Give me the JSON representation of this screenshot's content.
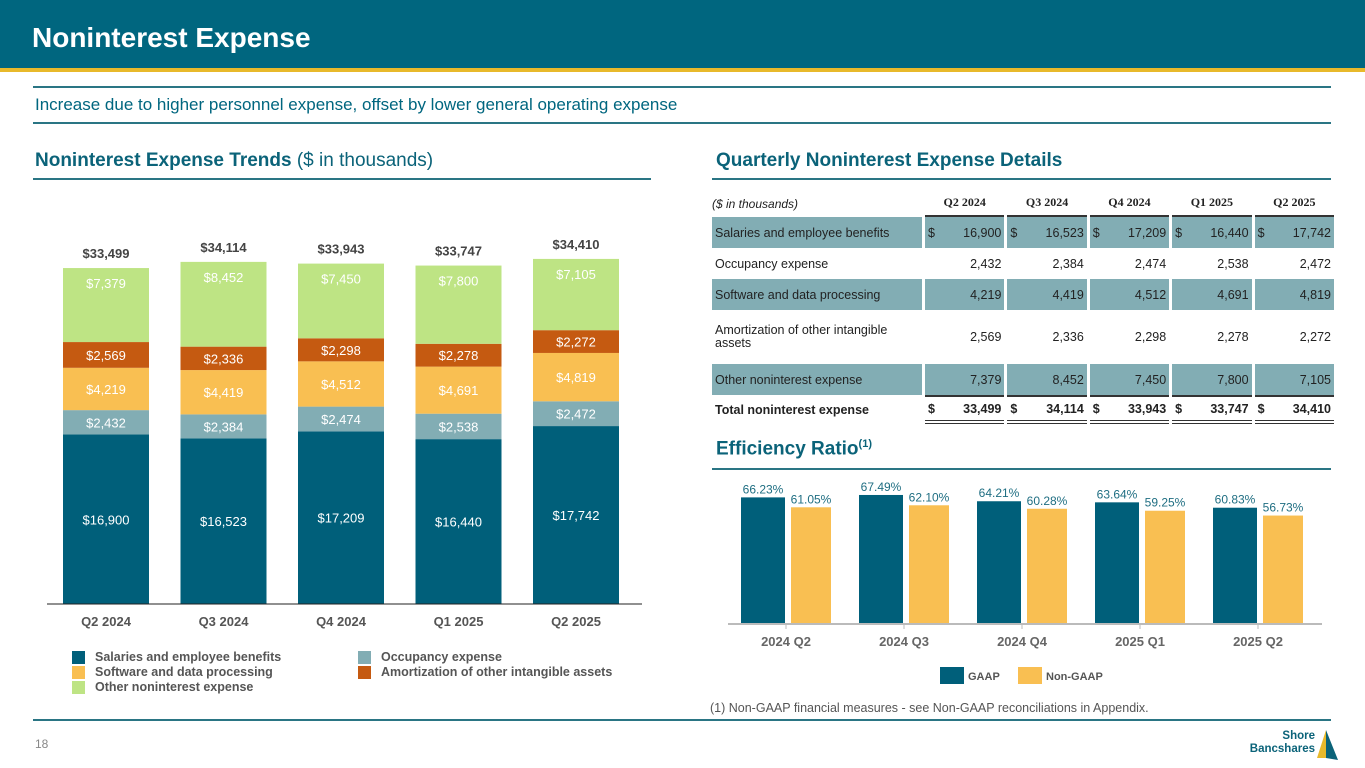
{
  "header": {
    "title": "Noninterest Expense",
    "subtitle": "Increase due to higher personnel expense, offset by lower general operating expense"
  },
  "left_section": {
    "title_bold": "Noninterest Expense Trends",
    "title_light": " ($ in thousands)"
  },
  "right_section": {
    "table_title": "Quarterly Noninterest Expense Details",
    "efficiency_title": "Efficiency Ratio",
    "efficiency_sup": "(1)",
    "footnote": "(1) Non-GAAP financial measures - see Non-GAAP reconciliations in Appendix."
  },
  "colors": {
    "brand": "#00667f",
    "gold": "#e8b92b",
    "salaries": "#005f7a",
    "occupancy": "#82adb4",
    "software": "#f9bf52",
    "amortization": "#c55a11",
    "other": "#bee484",
    "gaap": "#005f7a",
    "nongaap": "#f9bf52"
  },
  "chart_data": [
    {
      "type": "bar",
      "stacked": true,
      "title": "Noninterest Expense Trends ($ in thousands)",
      "categories": [
        "Q2 2024",
        "Q3 2024",
        "Q4 2024",
        "Q1 2025",
        "Q2 2025"
      ],
      "series": [
        {
          "name": "Salaries and employee benefits",
          "values": [
            16900,
            16523,
            17209,
            16440,
            17742
          ],
          "labels": [
            "$16,900",
            "$16,523",
            "$17,209",
            "$16,440",
            "$17,742"
          ]
        },
        {
          "name": "Occupancy expense",
          "values": [
            2432,
            2384,
            2474,
            2538,
            2472
          ],
          "labels": [
            "$2,432",
            "$2,384",
            "$2,474",
            "$2,538",
            "$2,472"
          ]
        },
        {
          "name": "Software and data processing",
          "values": [
            4219,
            4419,
            4512,
            4691,
            4819
          ],
          "labels": [
            "$4,219",
            "$4,419",
            "$4,512",
            "$4,691",
            "$4,819"
          ]
        },
        {
          "name": "Amortization of other intangible assets",
          "values": [
            2569,
            2336,
            2298,
            2278,
            2272
          ],
          "labels": [
            "$2,569",
            "$2,336",
            "$2,298",
            "$2,278",
            "$2,272"
          ]
        },
        {
          "name": "Other noninterest expense",
          "values": [
            7379,
            8452,
            7450,
            7800,
            7105
          ],
          "labels": [
            "$7,379",
            "$8,452",
            "$7,450",
            "$7,800",
            "$7,105"
          ]
        }
      ],
      "totals": [
        33499,
        34114,
        33943,
        33747,
        34410
      ],
      "total_labels": [
        "$33,499",
        "$34,114",
        "$33,943",
        "$33,747",
        "$34,410"
      ],
      "legend": [
        "Salaries and employee benefits",
        "Occupancy expense",
        "Software and data processing",
        "Amortization of other intangible assets",
        "Other noninterest expense"
      ],
      "legend_position": "bottom",
      "grid": false
    },
    {
      "type": "bar",
      "title": "Efficiency Ratio(1)",
      "categories": [
        "2024 Q2",
        "2024 Q3",
        "2024 Q4",
        "2025 Q1",
        "2025 Q2"
      ],
      "series": [
        {
          "name": "GAAP",
          "values": [
            66.23,
            67.49,
            64.21,
            63.64,
            60.83
          ],
          "labels": [
            "66.23%",
            "67.49%",
            "64.21%",
            "63.64%",
            "60.83%"
          ]
        },
        {
          "name": "Non-GAAP",
          "values": [
            61.05,
            62.1,
            60.28,
            59.25,
            56.73
          ],
          "labels": [
            "61.05%",
            "62.10%",
            "60.28%",
            "59.25%",
            "56.73%"
          ]
        }
      ],
      "legend": [
        "GAAP",
        "Non-GAAP"
      ],
      "legend_position": "bottom",
      "grid": false
    }
  ],
  "table": {
    "unit_label": "($ in thousands)",
    "columns": [
      "Q2 2024",
      "Q3 2024",
      "Q4 2024",
      "Q1 2025",
      "Q2 2025"
    ],
    "rows": [
      {
        "label": "Salaries and employee benefits",
        "values": [
          "16,900",
          "16,523",
          "17,209",
          "16,440",
          "17,742"
        ],
        "currency": "$"
      },
      {
        "label": "Occupancy expense",
        "values": [
          "2,432",
          "2,384",
          "2,474",
          "2,538",
          "2,472"
        ]
      },
      {
        "label": "Software and data processing",
        "values": [
          "4,219",
          "4,419",
          "4,512",
          "4,691",
          "4,819"
        ]
      },
      {
        "label": "Amortization of other intangible assets",
        "values": [
          "2,569",
          "2,336",
          "2,298",
          "2,278",
          "2,272"
        ]
      },
      {
        "label": "Other noninterest expense",
        "values": [
          "7,379",
          "8,452",
          "7,450",
          "7,800",
          "7,105"
        ]
      },
      {
        "label": "Total noninterest expense",
        "values": [
          "33,499",
          "34,114",
          "33,943",
          "33,747",
          "34,410"
        ],
        "currency": "$"
      }
    ]
  },
  "footer": {
    "page_number": "18",
    "logo_line1": "Shore",
    "logo_line2": "Bancshares"
  }
}
